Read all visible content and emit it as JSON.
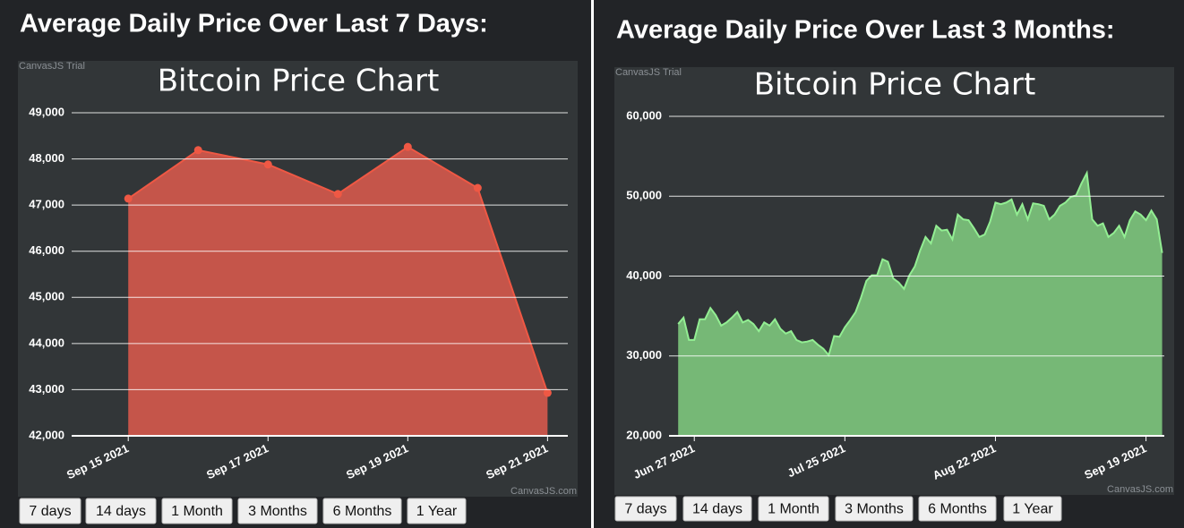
{
  "panels": [
    {
      "heading": "Average Daily Price Over Last 7 Days:",
      "trial": "CanvasJS Trial",
      "credit": "CanvasJS.com",
      "buttons": [
        "7 days",
        "14 days",
        "1 Month",
        "3 Months",
        "6 Months",
        "1 Year"
      ]
    },
    {
      "heading": "Average Daily Price Over Last 3 Months:",
      "trial": "CanvasJS Trial",
      "credit": "CanvasJS.com",
      "buttons": [
        "7 days",
        "14 days",
        "1 Month",
        "3 Months",
        "6 Months",
        "1 Year"
      ]
    }
  ],
  "chart_data": [
    {
      "type": "area",
      "title": "Bitcoin Price Chart",
      "fill": "#c5554a",
      "line_color": "#ef5844",
      "markers": true,
      "x": [
        258,
        259,
        260,
        261,
        262,
        263,
        264
      ],
      "values": [
        47140,
        48190,
        47880,
        47240,
        48260,
        47370,
        42930
      ],
      "xlim": [
        257.19,
        264.29
      ],
      "xticks": [
        {
          "value": 258,
          "label": "Sep 15 2021"
        },
        {
          "value": 260,
          "label": "Sep 17 2021"
        },
        {
          "value": 262,
          "label": "Sep 19 2021"
        },
        {
          "value": 264,
          "label": "Sep 21 2021"
        }
      ],
      "ylim": [
        42000,
        49000
      ],
      "yticks": [
        {
          "value": 42000,
          "label": "42,000"
        },
        {
          "value": 43000,
          "label": "43,000"
        },
        {
          "value": 44000,
          "label": "44,000"
        },
        {
          "value": 45000,
          "label": "45,000"
        },
        {
          "value": 46000,
          "label": "46,000"
        },
        {
          "value": 47000,
          "label": "47,000"
        },
        {
          "value": 48000,
          "label": "48,000"
        },
        {
          "value": 49000,
          "label": "49,000"
        }
      ],
      "grid": true
    },
    {
      "type": "area",
      "title": "Bitcoin Price Chart",
      "fill": "#76b876",
      "line_color": "#93ee93",
      "markers": false,
      "x": [
        175,
        176,
        177,
        178,
        179,
        180,
        181,
        182,
        183,
        184,
        185,
        186,
        187,
        188,
        189,
        190,
        191,
        192,
        193,
        194,
        195,
        196,
        197,
        198,
        199,
        200,
        201,
        202,
        203,
        204,
        205,
        206,
        207,
        208,
        209,
        210,
        211,
        212,
        213,
        214,
        215,
        216,
        217,
        218,
        219,
        220,
        221,
        222,
        223,
        224,
        225,
        226,
        227,
        228,
        229,
        230,
        231,
        232,
        233,
        234,
        235,
        236,
        237,
        238,
        239,
        240,
        241,
        242,
        243,
        244,
        245,
        246,
        247,
        248,
        249,
        250,
        251,
        252,
        253,
        254,
        255,
        256,
        257,
        258,
        259,
        260,
        261,
        262,
        263,
        264,
        265
      ],
      "values": [
        34000,
        34800,
        32000,
        32000,
        34600,
        34600,
        36000,
        35100,
        33800,
        34200,
        34800,
        35500,
        34200,
        34500,
        34000,
        33100,
        34200,
        33800,
        34600,
        33400,
        32800,
        33100,
        32000,
        31700,
        31800,
        32000,
        31400,
        30900,
        30100,
        32500,
        32400,
        33600,
        34500,
        35500,
        37300,
        39400,
        40100,
        40100,
        42100,
        41800,
        39700,
        39200,
        38400,
        40100,
        41200,
        43200,
        44900,
        44100,
        46300,
        45700,
        45800,
        44600,
        47700,
        47100,
        47000,
        46000,
        44900,
        45200,
        46800,
        49200,
        49000,
        49200,
        49600,
        47700,
        49000,
        47100,
        49100,
        49000,
        48800,
        47100,
        47700,
        48800,
        49200,
        49900,
        50100,
        51600,
        52900,
        47100,
        46300,
        46600,
        44900,
        45400,
        46300,
        44900,
        47000,
        48100,
        47700,
        47000,
        48200,
        47100,
        42900
      ],
      "xlim": [
        173.3,
        265.4
      ],
      "xticks": [
        {
          "value": 178,
          "label": "Jun 27 2021"
        },
        {
          "value": 206,
          "label": "Jul 25 2021"
        },
        {
          "value": 234,
          "label": "Aug 22 2021"
        },
        {
          "value": 262,
          "label": "Sep 19 2021"
        }
      ],
      "ylim": [
        20000,
        60000
      ],
      "yticks": [
        {
          "value": 20000,
          "label": "20,000"
        },
        {
          "value": 30000,
          "label": "30,000"
        },
        {
          "value": 40000,
          "label": "40,000"
        },
        {
          "value": 50000,
          "label": "50,000"
        },
        {
          "value": 60000,
          "label": "60,000"
        }
      ],
      "grid": true
    }
  ]
}
